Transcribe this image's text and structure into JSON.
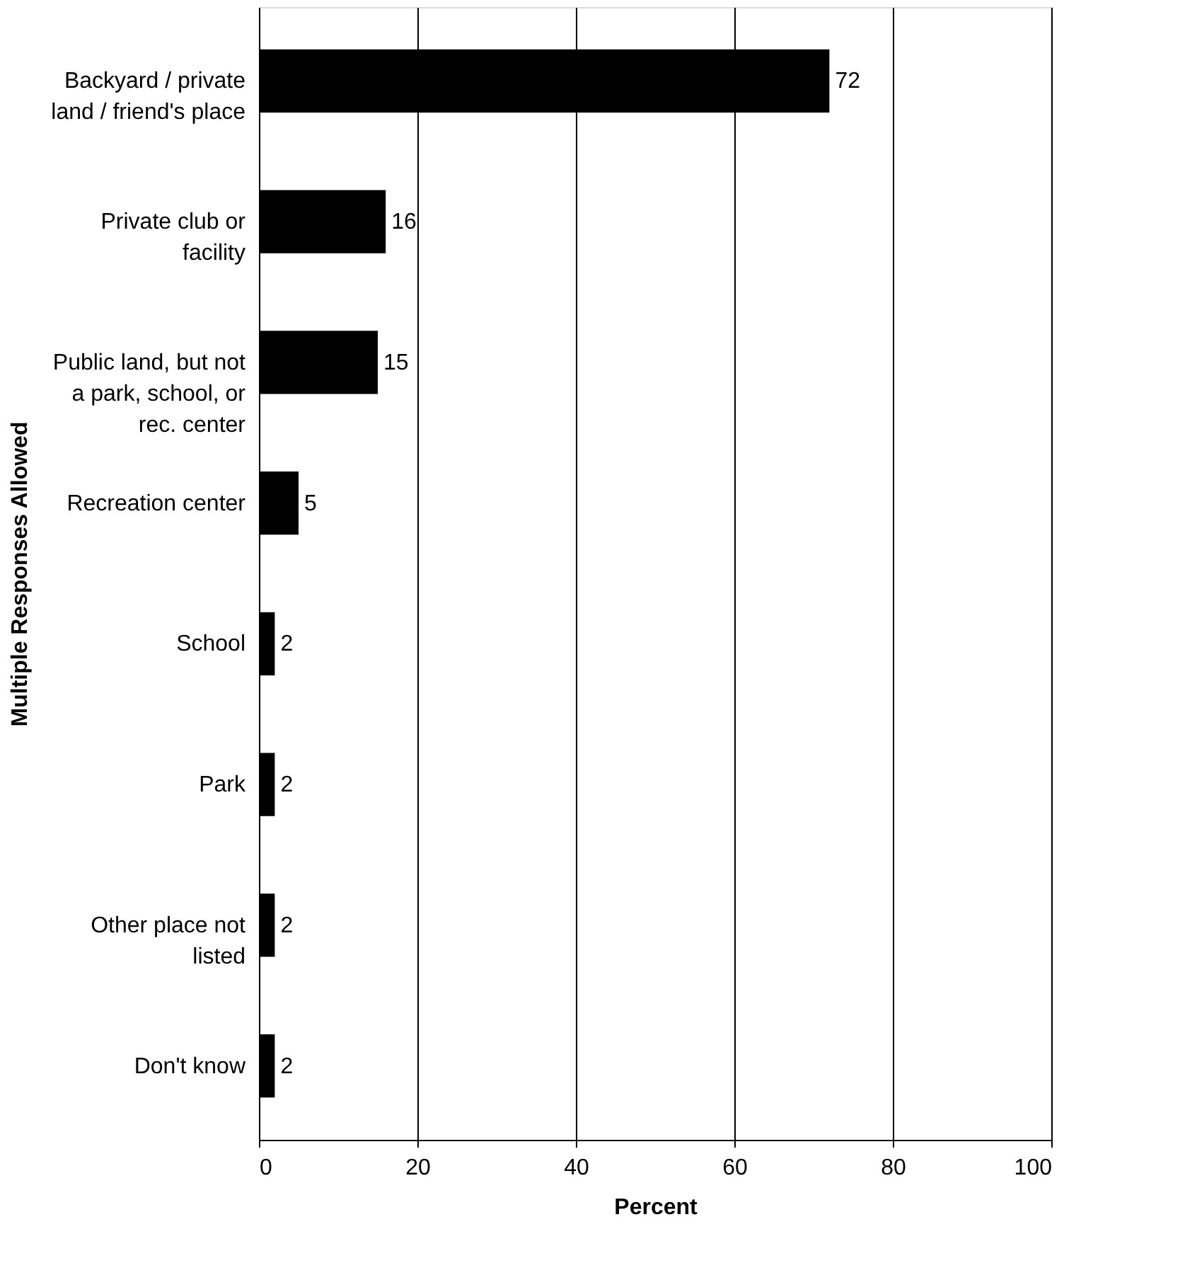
{
  "chart_data": {
    "type": "bar",
    "orientation": "horizontal",
    "xlabel": "Percent",
    "ylabel": "Multiple Responses Allowed",
    "categories": [
      "Backyard / private\nland / friend's place",
      "Private club or\nfacility",
      "Public land, but not\na park, school, or\nrec. center",
      "Recreation center",
      "School",
      "Park",
      "Other place not\nlisted",
      "Don't know"
    ],
    "values": [
      72,
      16,
      15,
      5,
      2,
      2,
      2,
      2
    ],
    "color": "#000000",
    "xlim": [
      0,
      100
    ],
    "xticks": [
      0,
      20,
      40,
      60,
      80,
      100
    ],
    "grid": "x",
    "data_labels": true
  }
}
